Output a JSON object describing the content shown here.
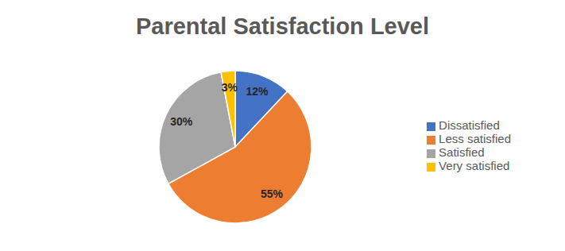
{
  "chart_data": {
    "type": "pie",
    "title": "Parental Satisfaction Level",
    "categories": [
      "Dissatisfied",
      "Less satisfied",
      "Satisfied",
      "Very satisfied"
    ],
    "values": [
      12,
      55,
      30,
      3
    ],
    "value_labels": [
      "12%",
      "55%",
      "30%",
      "3%"
    ],
    "colors": [
      "#4472c4",
      "#ed7d31",
      "#a5a5a5",
      "#ffc000"
    ],
    "legend": "right",
    "data_labels": true
  }
}
